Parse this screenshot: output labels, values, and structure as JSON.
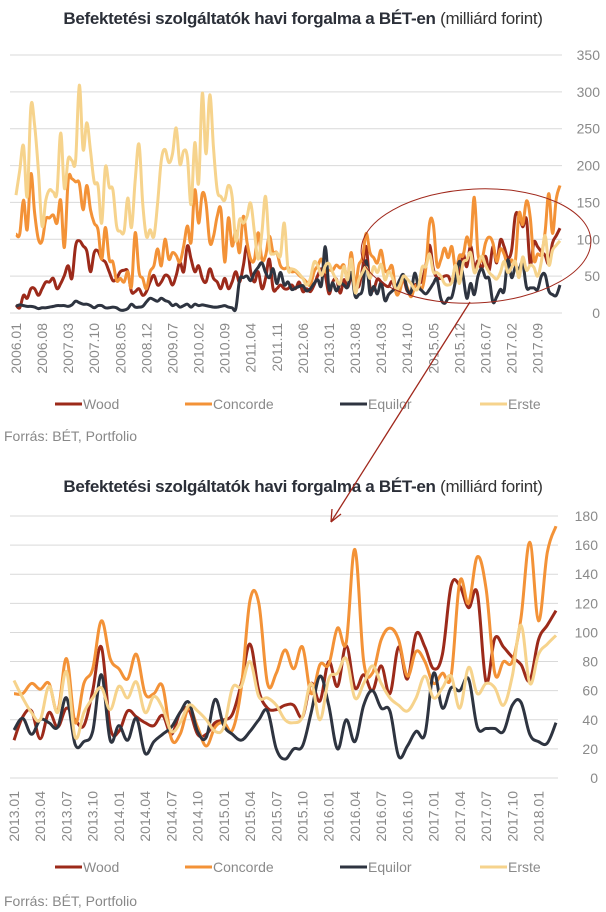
{
  "colors": {
    "Wood": "#9c2a1a",
    "Concorde": "#f39237",
    "Equilor": "#2e3440",
    "Erste": "#f6d38c",
    "annotation": "#a0281c",
    "grid": "#d9d9d9",
    "tick": "#8a8a8a"
  },
  "chart_data": [
    {
      "type": "line",
      "title_bold": "Befektetési szolgáltatók havi forgalma a BÉT-en",
      "title_normal": "(milliárd forint)",
      "source": "Forrás: BÉT, Portfolio",
      "x_start": "2006.01",
      "x_end": "2018.03",
      "x_step": "monthly",
      "ylim": [
        0,
        350
      ],
      "yticks": [
        0,
        50,
        100,
        150,
        200,
        250,
        300,
        350
      ],
      "xtick_labels": [
        "2006.01",
        "2006.08",
        "2007.03",
        "2007.10",
        "2008.05",
        "2008.12",
        "2009.07",
        "2010.02",
        "2010.09",
        "2011.04",
        "2011.11",
        "2012.06",
        "2013.01",
        "2013.08",
        "2014.03",
        "2014.10",
        "2015.05",
        "2015.12",
        "2016.07",
        "2017.02",
        "2017.09"
      ],
      "grid": true,
      "legend": "bottom",
      "y_axis_side": "right",
      "series": [
        {
          "name": "Wood",
          "values": [
            11,
            7,
            24,
            20,
            33,
            33,
            24,
            33,
            42,
            42,
            47,
            33,
            40,
            51,
            64,
            47,
            91,
            98,
            91,
            84,
            56,
            82,
            84,
            73,
            69,
            56,
            44,
            47,
            56,
            58,
            56,
            29,
            29,
            33,
            24,
            29,
            42,
            51,
            38,
            42,
            51,
            49,
            38,
            51,
            69,
            56,
            91,
            73,
            56,
            64,
            47,
            42,
            60,
            47,
            42,
            33,
            47,
            33,
            42,
            56,
            42,
            64,
            91,
            56,
            42,
            56,
            33,
            47,
            73,
            33,
            33,
            38,
            33,
            33,
            38,
            33,
            42,
            29,
            33,
            29,
            38,
            51,
            60,
            51,
            26,
            42,
            46,
            27,
            45,
            35,
            48,
            40,
            36,
            60,
            90,
            35,
            32,
            46,
            42,
            38,
            36,
            43,
            30,
            45,
            47,
            30,
            30,
            38,
            40,
            44,
            65,
            92,
            60,
            48,
            47,
            50,
            50,
            42,
            65,
            53,
            80,
            63,
            91,
            62,
            71,
            60,
            77,
            58,
            90,
            68,
            99,
            90,
            75,
            85,
            132,
            132,
            117,
            127,
            66,
            96,
            90,
            83,
            78,
            67,
            95,
            105,
            115
          ]
        },
        {
          "name": "Concorde",
          "values": [
            107,
            107,
            153,
            113,
            189,
            136,
            100,
            98,
            127,
            129,
            133,
            122,
            153,
            89,
            180,
            182,
            178,
            176,
            140,
            173,
            140,
            122,
            113,
            73,
            116,
            73,
            69,
            44,
            47,
            42,
            56,
            36,
            109,
            56,
            47,
            33,
            56,
            64,
            87,
            64,
            100,
            73,
            82,
            78,
            69,
            91,
            118,
            96,
            167,
            122,
            162,
            149,
            96,
            104,
            131,
            140,
            69,
            129,
            91,
            111,
            82,
            131,
            96,
            73,
            73,
            109,
            73,
            78,
            104,
            82,
            82,
            64,
            60,
            62,
            56,
            56,
            51,
            47,
            42,
            38,
            56,
            64,
            73,
            56,
            58,
            58,
            65,
            61,
            65,
            46,
            82,
            38,
            65,
            75,
            108,
            82,
            75,
            68,
            85,
            58,
            58,
            63,
            27,
            30,
            48,
            35,
            22,
            35,
            38,
            33,
            62,
            122,
            120,
            65,
            72,
            88,
            75,
            90,
            58,
            78,
            78,
            103,
            93,
            157,
            80,
            72,
            95,
            103,
            95,
            70,
            87,
            80,
            65,
            72,
            70,
            135,
            120,
            152,
            130,
            72,
            80,
            80,
            110,
            162,
            108,
            155,
            173
          ]
        },
        {
          "name": "Equilor",
          "values": [
            9,
            11,
            10,
            9,
            9,
            8,
            6,
            7,
            7,
            8,
            9,
            10,
            10,
            10,
            9,
            11,
            16,
            14,
            12,
            12,
            10,
            7,
            10,
            10,
            7,
            7,
            8,
            7,
            4,
            4,
            6,
            12,
            8,
            8,
            9,
            15,
            20,
            18,
            16,
            20,
            17,
            15,
            10,
            12,
            8,
            10,
            12,
            8,
            12,
            10,
            11,
            10,
            9,
            8,
            8,
            9,
            10,
            8,
            7,
            6,
            45,
            48,
            50,
            44,
            55,
            62,
            68,
            55,
            48,
            60,
            40,
            55,
            38,
            42,
            32,
            34,
            36,
            37,
            30,
            33,
            40,
            45,
            38,
            90,
            33,
            41,
            30,
            40,
            38,
            35,
            55,
            23,
            25,
            32,
            71,
            26,
            36,
            26,
            41,
            17,
            25,
            30,
            35,
            45,
            52,
            32,
            28,
            54,
            36,
            30,
            26,
            32,
            40,
            46,
            20,
            13,
            20,
            22,
            45,
            70,
            50,
            20,
            40,
            25,
            50,
            60,
            48,
            46,
            15,
            22,
            32,
            30,
            72,
            48,
            62,
            60,
            68,
            35,
            34,
            34,
            32,
            50,
            52,
            30,
            25,
            24,
            38
          ]
        },
        {
          "name": "Erste",
          "values": [
            160,
            193,
            227,
            158,
            280,
            255,
            193,
            118,
            153,
            167,
            164,
            164,
            244,
            169,
            209,
            207,
            207,
            309,
            222,
            258,
            220,
            178,
            173,
            122,
            198,
            171,
            167,
            118,
            111,
            111,
            156,
            116,
            180,
            229,
            149,
            104,
            113,
            104,
            149,
            207,
            222,
            204,
            216,
            251,
            202,
            220,
            211,
            147,
            231,
            176,
            298,
            216,
            296,
            224,
            167,
            158,
            153,
            173,
            158,
            98,
            127,
            122,
            131,
            149,
            109,
            73,
            109,
            158,
            89,
            80,
            82,
            78,
            122,
            60,
            60,
            58,
            53,
            47,
            38,
            47,
            69,
            64,
            51,
            64,
            67,
            55,
            45,
            40,
            63,
            45,
            73,
            28,
            45,
            55,
            62,
            47,
            63,
            55,
            66,
            45,
            56,
            48,
            32,
            38,
            50,
            46,
            40,
            32,
            35,
            62,
            63,
            80,
            56,
            55,
            50,
            40,
            38,
            42,
            65,
            40,
            68,
            72,
            82,
            55,
            65,
            77,
            65,
            55,
            50,
            46,
            55,
            70,
            55,
            62,
            70,
            48,
            76,
            58,
            65,
            62,
            50,
            70,
            105,
            65,
            85,
            92,
            98
          ]
        }
      ]
    },
    {
      "type": "line",
      "title_bold": "Befektetési szolgáltatók havi forgalma a BÉT-en",
      "title_normal": "(milliárd forint)",
      "source": "Forrás: BÉT, Portfolio",
      "x_start": "2013.01",
      "x_end": "2018.03",
      "x_step": "monthly",
      "ylim": [
        0,
        180
      ],
      "yticks": [
        0,
        20,
        40,
        60,
        80,
        100,
        120,
        140,
        160,
        180
      ],
      "xtick_labels": [
        "2013.01",
        "2013.04",
        "2013.07",
        "2013.10",
        "2014.01",
        "2014.04",
        "2014.07",
        "2014.10",
        "2015.01",
        "2015.04",
        "2015.07",
        "2015.10",
        "2016.01",
        "2016.04",
        "2016.07",
        "2016.10",
        "2017.01",
        "2017.04",
        "2017.07",
        "2017.10",
        "2018.01"
      ],
      "grid": true,
      "legend": "bottom",
      "y_axis_side": "right",
      "series": [
        {
          "name": "Wood",
          "values": [
            26,
            42,
            46,
            27,
            45,
            35,
            48,
            40,
            36,
            60,
            90,
            35,
            32,
            46,
            42,
            38,
            36,
            43,
            30,
            45,
            47,
            30,
            30,
            38,
            40,
            44,
            65,
            92,
            60,
            48,
            47,
            50,
            50,
            42,
            65,
            53,
            80,
            63,
            91,
            62,
            71,
            60,
            77,
            58,
            90,
            68,
            99,
            90,
            75,
            85,
            132,
            132,
            117,
            127,
            66,
            96,
            90,
            83,
            78,
            67,
            95,
            105,
            115
          ]
        },
        {
          "name": "Concorde",
          "values": [
            58,
            58,
            65,
            61,
            65,
            46,
            82,
            38,
            65,
            75,
            108,
            82,
            75,
            68,
            85,
            58,
            58,
            63,
            27,
            30,
            48,
            35,
            22,
            35,
            38,
            33,
            62,
            122,
            120,
            65,
            72,
            88,
            75,
            90,
            58,
            78,
            78,
            103,
            93,
            157,
            80,
            72,
            95,
            103,
            95,
            70,
            87,
            80,
            65,
            72,
            70,
            135,
            120,
            152,
            130,
            72,
            80,
            80,
            110,
            162,
            108,
            155,
            173
          ]
        },
        {
          "name": "Equilor",
          "values": [
            33,
            41,
            30,
            40,
            38,
            35,
            55,
            23,
            25,
            32,
            71,
            26,
            36,
            26,
            41,
            17,
            25,
            30,
            35,
            45,
            52,
            32,
            28,
            54,
            36,
            30,
            26,
            32,
            40,
            46,
            20,
            13,
            20,
            22,
            45,
            70,
            50,
            20,
            40,
            25,
            50,
            60,
            48,
            46,
            15,
            22,
            32,
            30,
            72,
            48,
            62,
            60,
            68,
            35,
            34,
            34,
            32,
            50,
            52,
            30,
            25,
            24,
            38
          ]
        },
        {
          "name": "Erste",
          "values": [
            67,
            55,
            45,
            40,
            63,
            45,
            73,
            28,
            45,
            55,
            62,
            47,
            63,
            55,
            66,
            45,
            56,
            48,
            32,
            38,
            50,
            46,
            40,
            32,
            35,
            62,
            63,
            80,
            56,
            55,
            50,
            40,
            38,
            42,
            65,
            40,
            68,
            72,
            82,
            55,
            65,
            77,
            65,
            55,
            50,
            46,
            55,
            70,
            55,
            62,
            70,
            48,
            76,
            58,
            65,
            62,
            50,
            70,
            105,
            65,
            85,
            92,
            98
          ]
        }
      ]
    }
  ]
}
